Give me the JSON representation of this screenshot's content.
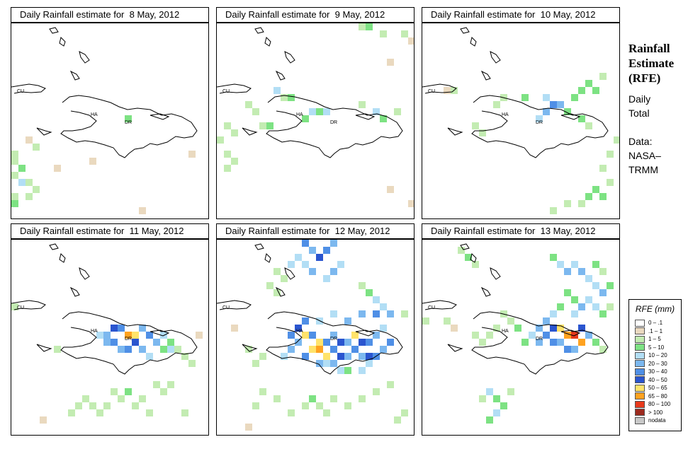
{
  "panels": [
    {
      "title": "Daily Rainfall estimate for  8 May, 2012",
      "labels": {
        "cu": "CU",
        "ha": "HA",
        "dr": "DR"
      }
    },
    {
      "title": "Daily Rainfall estimate for  9 May, 2012",
      "labels": {
        "cu": "CU",
        "ha": "HA",
        "dr": "DR"
      }
    },
    {
      "title": "Daily Rainfall estimate for  10 May, 2012",
      "labels": {
        "cu": "CU",
        "ha": "HA",
        "dr": "DR"
      }
    },
    {
      "title": "Daily Rainfall estimate for  11 May, 2012",
      "labels": {
        "cu": "CU",
        "ha": "HA",
        "dr": "DR"
      }
    },
    {
      "title": "Daily Rainfall estimate for  12 May, 2012",
      "labels": {
        "cu": "CU",
        "ha": "HA",
        "dr": "DR"
      }
    },
    {
      "title": "Daily Rainfall estimate for  13 May, 2012",
      "labels": {
        "cu": "CU",
        "ha": "HA",
        "dr": "DR"
      }
    }
  ],
  "side": {
    "title_line1": "Rainfall",
    "title_line2": "Estimate",
    "title_line3": "(RFE)",
    "line1": "Daily",
    "line2": "Total",
    "line3": "Data:",
    "line4": "NASA–",
    "line5": "TRMM"
  },
  "legend": {
    "title": "RFE (mm)",
    "items": [
      {
        "label": "0 – .1",
        "color": "#ffffff"
      },
      {
        "label": ".1 – 1",
        "color": "#ead9bf"
      },
      {
        "label": "1 – 5",
        "color": "#c3ecb2"
      },
      {
        "label": "5 – 10",
        "color": "#7de283"
      },
      {
        "label": "10 – 20",
        "color": "#b2def5"
      },
      {
        "label": "20 – 30",
        "color": "#7cb8ef"
      },
      {
        "label": "30 – 40",
        "color": "#4f8fe6"
      },
      {
        "label": "40 – 50",
        "color": "#2a55cf"
      },
      {
        "label": "50 – 65",
        "color": "#ffe36b"
      },
      {
        "label": "65 – 80",
        "color": "#ffa21f"
      },
      {
        "label": "80 – 100",
        "color": "#e83a1d"
      },
      {
        "label": "> 100",
        "color": "#9c2a1e"
      },
      {
        "label": "nodata",
        "color": "#c8c8c8"
      }
    ]
  }
}
